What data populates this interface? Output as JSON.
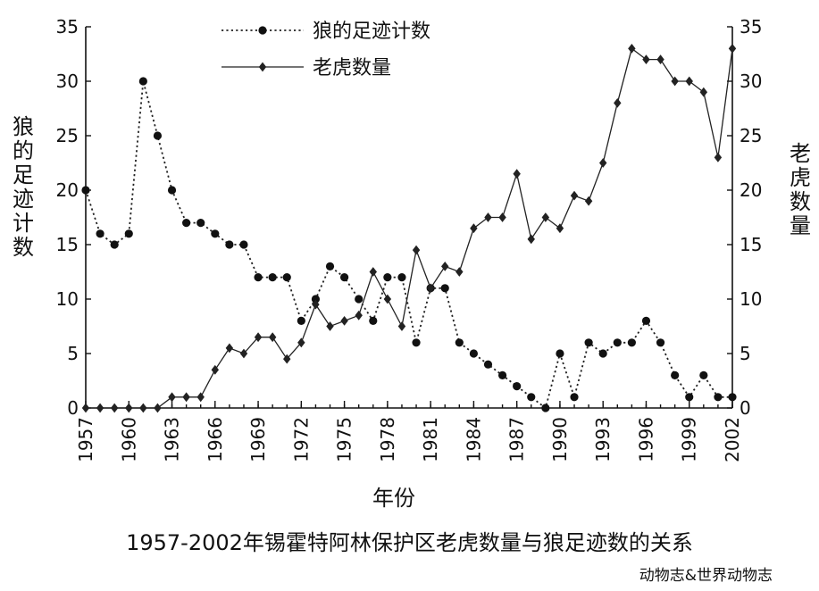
{
  "chart_data": {
    "type": "line",
    "caption": "1957-2002年锡霍特阿林保护区老虎数量与狼足迹数的关系",
    "source": "动物志&世界动物志",
    "xlabel": "年份",
    "ylabel_left": "狼的足迹计数",
    "ylabel_right": "老虎数量",
    "xlim": [
      1957,
      2002
    ],
    "x_ticks": [
      "1957",
      "1960",
      "1963",
      "1966",
      "1969",
      "1972",
      "1975",
      "1978",
      "1981",
      "1984",
      "1987",
      "1990",
      "1993",
      "1996",
      "1999",
      "2002"
    ],
    "ylim": [
      0,
      35
    ],
    "y_ticks": [
      "0",
      "5",
      "10",
      "15",
      "20",
      "25",
      "30",
      "35"
    ],
    "grid": false,
    "legend_position": "top-center",
    "x": [
      1957,
      1958,
      1959,
      1960,
      1961,
      1962,
      1963,
      1964,
      1965,
      1966,
      1967,
      1968,
      1969,
      1970,
      1971,
      1972,
      1973,
      1974,
      1975,
      1976,
      1977,
      1978,
      1979,
      1980,
      1981,
      1982,
      1983,
      1984,
      1985,
      1986,
      1987,
      1988,
      1989,
      1990,
      1991,
      1992,
      1993,
      1994,
      1995,
      1996,
      1997,
      1998,
      1999,
      2000,
      2001,
      2002
    ],
    "series": [
      {
        "name": "狼的足迹计数",
        "axis": "left",
        "style": "dotted",
        "marker": "circle",
        "values": [
          20,
          16,
          15,
          16,
          30,
          25,
          20,
          17,
          17,
          16,
          15,
          15,
          12,
          12,
          12,
          8,
          10,
          13,
          12,
          10,
          8,
          12,
          12,
          6,
          11,
          11,
          6,
          5,
          4,
          3,
          2,
          1,
          0,
          5,
          1,
          6,
          5,
          6,
          6,
          8,
          6,
          3,
          1,
          3,
          1,
          1
        ]
      },
      {
        "name": "老虎数量",
        "axis": "right",
        "style": "solid",
        "marker": "diamond",
        "values": [
          0,
          0,
          0,
          0,
          0,
          0,
          1,
          1,
          1,
          3.5,
          5.5,
          5,
          6.5,
          6.5,
          4.5,
          6,
          9.5,
          7.5,
          8,
          8.5,
          12.5,
          10,
          7.5,
          14.5,
          11,
          13,
          12.5,
          16.5,
          17.5,
          17.5,
          21.5,
          15.5,
          17.5,
          16.5,
          19.5,
          19,
          22.5,
          28,
          33,
          32,
          32,
          30,
          30,
          29,
          23,
          33
        ]
      }
    ]
  }
}
